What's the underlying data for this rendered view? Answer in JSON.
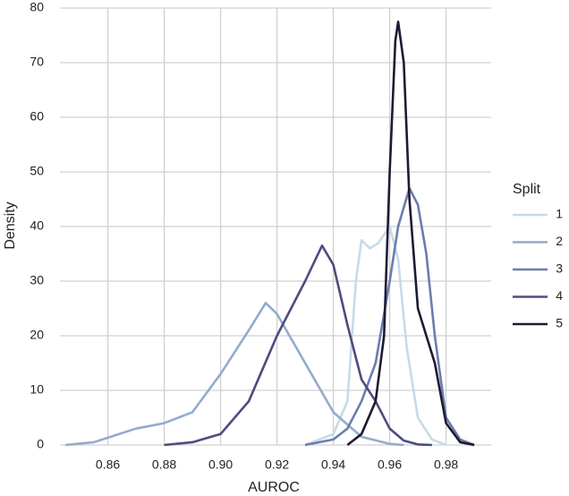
{
  "chart_data": {
    "type": "line",
    "xlabel": "AUROC",
    "ylabel": "Density",
    "legend_title": "Split",
    "legend_position": "right",
    "grid": true,
    "xlim": [
      0.843,
      0.996
    ],
    "ylim": [
      0,
      80
    ],
    "xticks": [
      0.86,
      0.88,
      {
        "value": 0.9,
        "label": "0.90"
      },
      0.92,
      0.94,
      0.96,
      0.98
    ],
    "yticks": [
      0,
      10,
      20,
      30,
      40,
      50,
      60,
      70,
      80
    ],
    "series": [
      {
        "name": "1",
        "color": "#c5dbe8",
        "x": [
          0.93,
          0.94,
          0.945,
          0.948,
          0.95,
          0.953,
          0.956,
          0.96,
          0.963,
          0.966,
          0.97,
          0.975,
          0.98
        ],
        "values": [
          0,
          2,
          8,
          30,
          37.5,
          36,
          37,
          40,
          34,
          18,
          5,
          1,
          0
        ]
      },
      {
        "name": "2",
        "color": "#93abcc",
        "x": [
          0.845,
          0.855,
          0.87,
          0.88,
          0.89,
          0.9,
          0.91,
          0.916,
          0.92,
          0.93,
          0.94,
          0.95,
          0.96,
          0.965
        ],
        "values": [
          0,
          0.5,
          3,
          4,
          6,
          13,
          21,
          26,
          24,
          15,
          6,
          1.5,
          0.2,
          0
        ]
      },
      {
        "name": "3",
        "color": "#6b7daf",
        "x": [
          0.93,
          0.94,
          0.945,
          0.95,
          0.955,
          0.96,
          0.963,
          0.967,
          0.97,
          0.973,
          0.976,
          0.98,
          0.985,
          0.99
        ],
        "values": [
          0,
          1,
          3,
          8,
          15,
          30,
          40,
          47,
          44,
          35,
          20,
          5,
          1,
          0
        ]
      },
      {
        "name": "4",
        "color": "#4e4b80",
        "x": [
          0.88,
          0.89,
          0.9,
          0.91,
          0.92,
          0.93,
          0.936,
          0.94,
          0.945,
          0.95,
          0.955,
          0.96,
          0.965,
          0.97,
          0.975
        ],
        "values": [
          0,
          0.5,
          2,
          8,
          20,
          30,
          36.5,
          33,
          22,
          12,
          8,
          3,
          0.8,
          0.1,
          0
        ]
      },
      {
        "name": "5",
        "color": "#1f1a33",
        "x": [
          0.945,
          0.95,
          0.955,
          0.958,
          0.96,
          0.962,
          0.963,
          0.965,
          0.967,
          0.97,
          0.973,
          0.976,
          0.98,
          0.985,
          0.99
        ],
        "values": [
          0,
          2,
          8,
          20,
          50,
          74,
          77.5,
          70,
          45,
          25,
          20,
          15,
          4,
          0.5,
          0
        ]
      }
    ]
  }
}
